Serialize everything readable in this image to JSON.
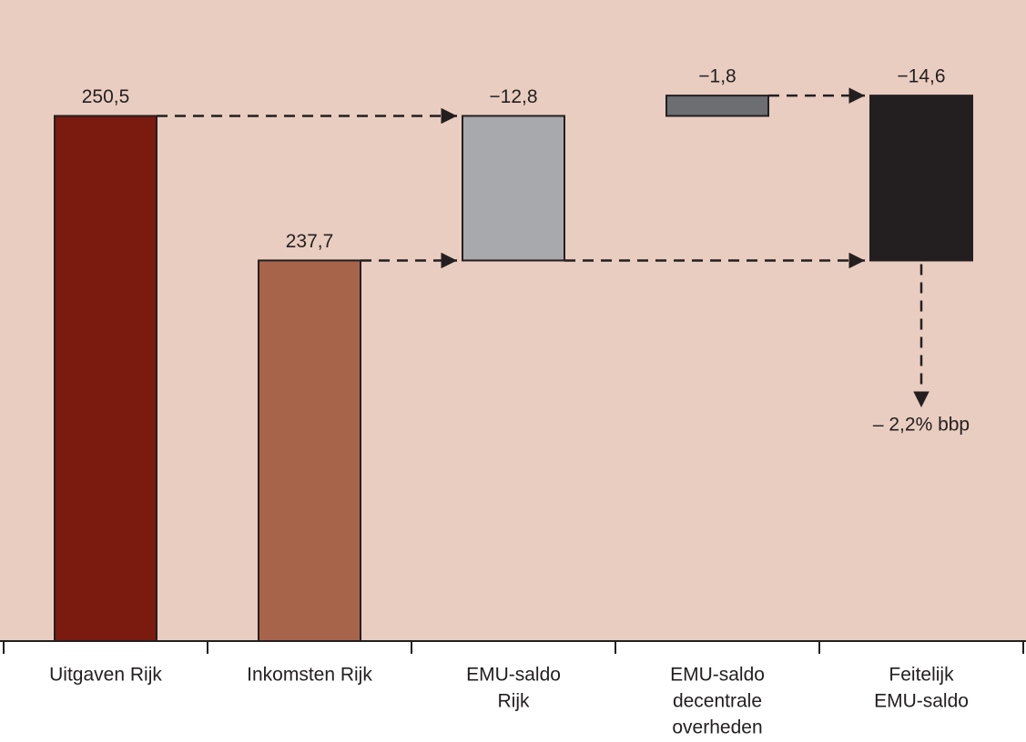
{
  "chart_data": {
    "type": "waterfall",
    "categories": [
      [
        "Uitgaven Rijk"
      ],
      [
        "Inkomsten Rijk"
      ],
      [
        "EMU-saldo",
        "Rijk"
      ],
      [
        "EMU-saldo",
        "decentrale",
        "overheden"
      ],
      [
        "Feitelijk",
        "EMU-saldo"
      ]
    ],
    "values": [
      250.5,
      237.7,
      -12.8,
      -1.8,
      -14.6
    ],
    "value_labels": [
      "250,5",
      "237,7",
      "−12,8",
      "−1,8",
      "−14,6"
    ],
    "colors": [
      "#7b1a0f",
      "#a8644a",
      "#a8a9ad",
      "#6d6e71",
      "#231f20"
    ],
    "ylim": [
      204,
      254
    ],
    "annotation": "– 2,2% bbp",
    "background": "#e9cdc0"
  }
}
